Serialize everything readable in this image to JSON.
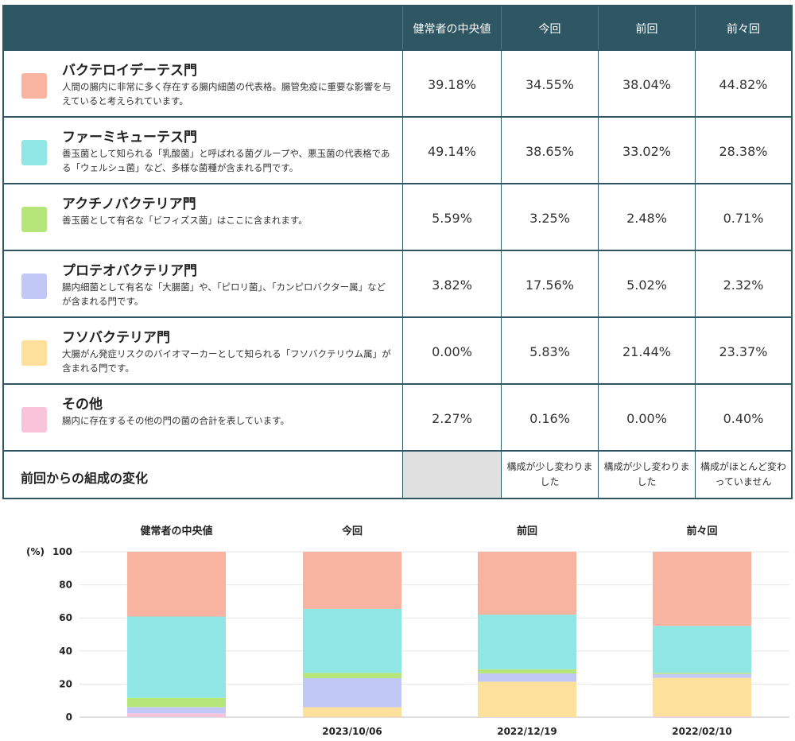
{
  "table": {
    "headers": [
      "健常者の中央値",
      "今回",
      "前回",
      "前々回"
    ],
    "rows": [
      {
        "name": "バクテロイデーテス門",
        "desc": "人間の腸内に非常に多く存在する腸内細菌の代表格。腸管免疫に重要な影響を与えていると考えられています。",
        "color": "#f8b3a1",
        "values": [
          "39.18%",
          "34.55%",
          "38.04%",
          "44.82%"
        ]
      },
      {
        "name": "ファーミキューテス門",
        "desc": "善玉菌として知られる「乳酸菌」と呼ばれる菌グループや、悪玉菌の代表格である「ウェルシュ菌」など、多様な菌種が含まれる門です。",
        "color": "#8fe6e4",
        "values": [
          "49.14%",
          "38.65%",
          "33.02%",
          "28.38%"
        ]
      },
      {
        "name": "アクチノバクテリア門",
        "desc": "善玉菌として有名な「ビフィズス菌」はここに含まれます。",
        "color": "#b6e67a",
        "values": [
          "5.59%",
          "3.25%",
          "2.48%",
          "0.71%"
        ]
      },
      {
        "name": "プロテオバクテリア門",
        "desc": "腸内細菌として有名な「大腸菌」や、「ピロリ菌」、「カンピロバクター属」などが含まれる門です。",
        "color": "#c1c8f5",
        "values": [
          "3.82%",
          "17.56%",
          "5.02%",
          "2.32%"
        ]
      },
      {
        "name": "フソバクテリア門",
        "desc": "大腸がん発症リスクのバイオマーカーとして知られる「フソバクテリウム属」が含まれる門です。",
        "color": "#fde09b",
        "values": [
          "0.00%",
          "5.83%",
          "21.44%",
          "23.37%"
        ]
      },
      {
        "name": "その他",
        "desc": "腸内に存在するその他の門の菌の合計を表しています。",
        "color": "#f9c4da",
        "values": [
          "2.27%",
          "0.16%",
          "0.00%",
          "0.40%"
        ]
      }
    ],
    "footer": {
      "label": "前回からの組成の変化",
      "cells": [
        "",
        "構成が少し変わりました",
        "構成が少し変わりました",
        "構成がほとんど変わっていません"
      ]
    }
  },
  "chart_data": {
    "type": "bar",
    "stacked": true,
    "categories": [
      "健常者の中央値",
      "今回",
      "前回",
      "前々回"
    ],
    "dates": [
      "",
      "2023/10/06",
      "2022/12/19",
      "2022/02/10"
    ],
    "ylabel": "(%)",
    "ylim": [
      0,
      100
    ],
    "yticks": [
      0,
      20,
      40,
      60,
      80,
      100
    ],
    "grid": true,
    "series": [
      {
        "name": "その他",
        "color": "#f9c4da",
        "values": [
          2.27,
          0.16,
          0.0,
          0.4
        ]
      },
      {
        "name": "フソバクテリア門",
        "color": "#fde09b",
        "values": [
          0.0,
          5.83,
          21.44,
          23.37
        ]
      },
      {
        "name": "プロテオバクテリア門",
        "color": "#c1c8f5",
        "values": [
          3.82,
          17.56,
          5.02,
          2.32
        ]
      },
      {
        "name": "アクチノバクテリア門",
        "color": "#b6e67a",
        "values": [
          5.59,
          3.25,
          2.48,
          0.71
        ]
      },
      {
        "name": "ファーミキューテス門",
        "color": "#8fe6e4",
        "values": [
          49.14,
          38.65,
          33.02,
          28.38
        ]
      },
      {
        "name": "バクテロイデーテス門",
        "color": "#f8b3a1",
        "values": [
          39.18,
          34.55,
          38.04,
          44.82
        ]
      }
    ]
  }
}
